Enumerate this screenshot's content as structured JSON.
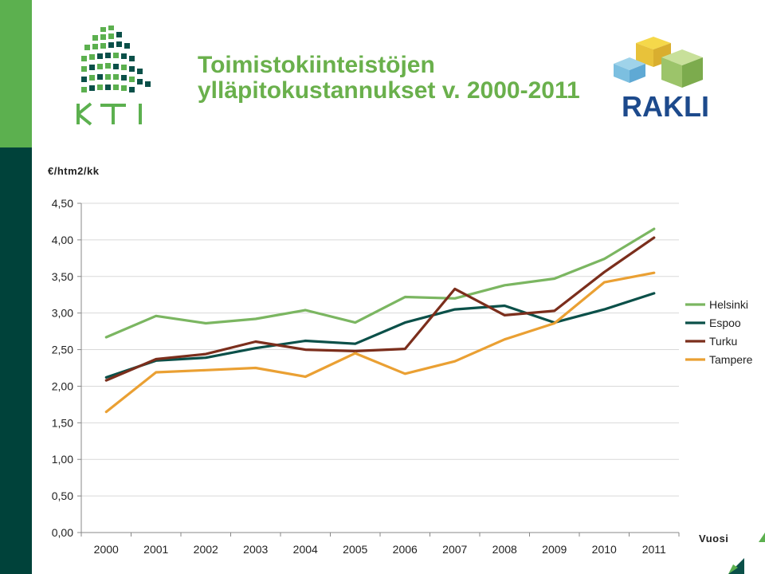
{
  "header": {
    "title_line1": "Toimistokiinteistöjen",
    "title_line2": "ylläpitokustannukset v. 2000-2011",
    "logo_left_text": "KTI",
    "logo_right_text": "RAKLI",
    "accent_color": "#5cb04f",
    "dark_color": "#00423a"
  },
  "chart_data": {
    "type": "line",
    "ylabel": "€/htm2/kk",
    "xlabel": "Vuosi",
    "categories": [
      "2000",
      "2001",
      "2002",
      "2003",
      "2004",
      "2005",
      "2006",
      "2007",
      "2008",
      "2009",
      "2010",
      "2011"
    ],
    "ylim": [
      0,
      4.5
    ],
    "yticks": [
      "0,00",
      "0,50",
      "1,00",
      "1,50",
      "2,00",
      "2,50",
      "3,00",
      "3,50",
      "4,00",
      "4,50"
    ],
    "grid": true,
    "legend_position": "right",
    "series": [
      {
        "name": "Helsinki",
        "color": "#7bb661",
        "values": [
          2.67,
          2.96,
          2.86,
          2.92,
          3.04,
          2.87,
          3.22,
          3.2,
          3.38,
          3.47,
          3.74,
          4.15
        ]
      },
      {
        "name": "Espoo",
        "color": "#0b5049",
        "values": [
          2.12,
          2.35,
          2.39,
          2.52,
          2.62,
          2.58,
          2.87,
          3.05,
          3.1,
          2.87,
          3.05,
          3.27
        ]
      },
      {
        "name": "Turku",
        "color": "#7b2e1c",
        "values": [
          2.08,
          2.37,
          2.44,
          2.61,
          2.5,
          2.48,
          2.51,
          3.33,
          2.97,
          3.03,
          3.56,
          4.03
        ]
      },
      {
        "name": "Tampere",
        "color": "#eaa033",
        "values": [
          1.65,
          2.19,
          2.22,
          2.25,
          2.13,
          2.45,
          2.17,
          2.34,
          2.64,
          2.86,
          3.42,
          3.55
        ]
      }
    ]
  }
}
